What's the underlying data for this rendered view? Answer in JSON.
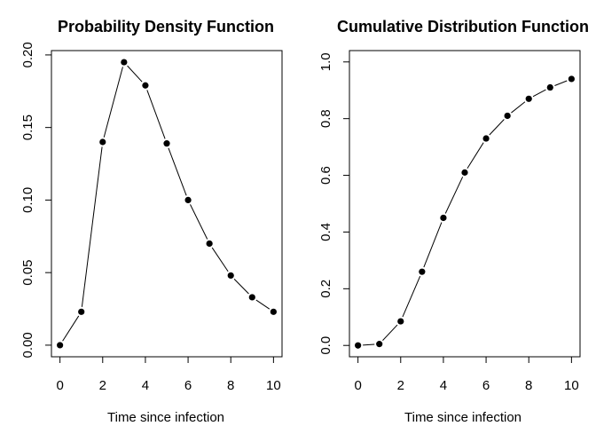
{
  "chart_data": [
    {
      "type": "line",
      "title": "Probability Density Function",
      "xlabel": "Time since infection",
      "ylabel": "",
      "x": [
        0,
        1,
        2,
        3,
        4,
        5,
        6,
        7,
        8,
        9,
        10
      ],
      "series": [
        {
          "values": [
            0.0,
            0.023,
            0.14,
            0.195,
            0.179,
            0.139,
            0.1,
            0.07,
            0.048,
            0.033,
            0.023
          ]
        }
      ],
      "xlim": [
        -0.4,
        10.4
      ],
      "ylim": [
        -0.008,
        0.203
      ],
      "xticks": [
        0,
        2,
        4,
        6,
        8,
        10
      ],
      "xtick_labels": [
        "0",
        "2",
        "4",
        "6",
        "8",
        "10"
      ],
      "yticks": [
        0.0,
        0.05,
        0.1,
        0.15,
        0.2
      ],
      "ytick_labels": [
        "0.00",
        "0.05",
        "0.10",
        "0.15",
        "0.20"
      ],
      "markers": "filled-circle",
      "line_color": "#000000",
      "grid": false
    },
    {
      "type": "line",
      "title": "Cumulative Distribution Function",
      "xlabel": "Time since infection",
      "ylabel": "",
      "x": [
        0,
        1,
        2,
        3,
        4,
        5,
        6,
        7,
        8,
        9,
        10
      ],
      "series": [
        {
          "values": [
            0.0,
            0.005,
            0.085,
            0.26,
            0.45,
            0.61,
            0.73,
            0.81,
            0.87,
            0.91,
            0.94
          ]
        }
      ],
      "xlim": [
        -0.4,
        10.4
      ],
      "ylim": [
        -0.04,
        1.04
      ],
      "xticks": [
        0,
        2,
        4,
        6,
        8,
        10
      ],
      "xtick_labels": [
        "0",
        "2",
        "4",
        "6",
        "8",
        "10"
      ],
      "yticks": [
        0.0,
        0.2,
        0.4,
        0.6,
        0.8,
        1.0
      ],
      "ytick_labels": [
        "0.0",
        "0.2",
        "0.4",
        "0.6",
        "0.8",
        "1.0"
      ],
      "markers": "filled-circle",
      "line_color": "#000000",
      "grid": false
    }
  ]
}
